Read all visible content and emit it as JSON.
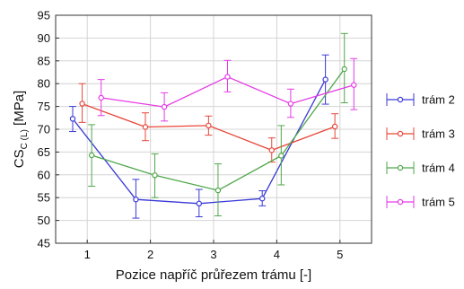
{
  "chart_data": {
    "type": "line",
    "xlabel": "Pozice napříč průřezem trámu [-]",
    "ylabel_main": "CS",
    "ylabel_sub": "C (L)",
    "ylabel_unit": " [MPa]",
    "xlim": [
      0.5,
      5.5
    ],
    "ylim": [
      45,
      95
    ],
    "x_ticks": [
      1,
      2,
      3,
      4,
      5
    ],
    "y_ticks": [
      45,
      50,
      55,
      60,
      65,
      70,
      75,
      80,
      85,
      90,
      95
    ],
    "grid": true,
    "legend_position": "right",
    "series": [
      {
        "name": "trám 2",
        "color": "#3a3ad6",
        "x": [
          0.77,
          1.77,
          2.77,
          3.77,
          4.77
        ],
        "y": [
          72.3,
          54.6,
          53.7,
          54.8,
          80.9
        ],
        "err_low": [
          69.5,
          50.5,
          50.8,
          53.2,
          75.5
        ],
        "err_high": [
          75.0,
          59.0,
          56.8,
          56.5,
          86.3
        ]
      },
      {
        "name": "trám 3",
        "color": "#e8473a",
        "x": [
          0.92,
          1.92,
          2.92,
          3.92,
          4.92
        ],
        "y": [
          75.6,
          70.5,
          70.8,
          65.4,
          70.6
        ],
        "err_low": [
          71.5,
          67.5,
          68.7,
          62.8,
          68.0
        ],
        "err_high": [
          80.0,
          73.6,
          72.9,
          68.1,
          73.4
        ]
      },
      {
        "name": "trám 4",
        "color": "#4fa84a",
        "x": [
          1.07,
          2.07,
          3.07,
          4.07,
          5.07
        ],
        "y": [
          64.3,
          59.9,
          56.6,
          64.2,
          83.2
        ],
        "err_low": [
          57.5,
          55.0,
          51.0,
          57.8,
          75.8
        ],
        "err_high": [
          71.0,
          64.6,
          62.4,
          70.8,
          91.0
        ]
      },
      {
        "name": "trám 5",
        "color": "#e63ae6",
        "x": [
          1.22,
          2.22,
          3.22,
          4.22,
          5.22
        ],
        "y": [
          76.9,
          74.9,
          81.5,
          75.6,
          79.7
        ],
        "err_low": [
          73.0,
          71.8,
          78.2,
          72.6,
          74.3
        ],
        "err_high": [
          80.9,
          78.0,
          85.1,
          78.8,
          85.5
        ]
      }
    ]
  }
}
